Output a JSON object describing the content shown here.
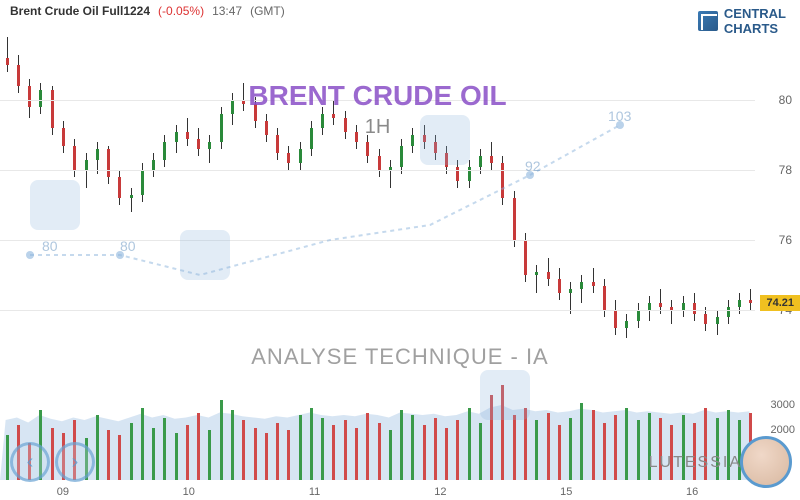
{
  "header": {
    "symbol": "Brent Crude Oil Full1224",
    "change": "(-0.05%)",
    "time": "13:47",
    "tz": "(GMT)"
  },
  "logo": {
    "text1": "CENTRAL",
    "text2": "CHARTS"
  },
  "title": {
    "main": "BRENT CRUDE OIL",
    "sub": "1H"
  },
  "subtitle": "ANALYSE TECHNIQUE - IA",
  "brand": "LUTESSIA",
  "chart": {
    "type": "candlestick",
    "ylim": [
      72,
      82
    ],
    "yticks": [
      74,
      76,
      78,
      80
    ],
    "current_price": 74.21,
    "xlabels": [
      "09",
      "10",
      "11",
      "12",
      "15",
      "16"
    ],
    "grid_color": "#e8e8e8",
    "up_color": "#2a8a3a",
    "down_color": "#c83a3a",
    "candles": [
      {
        "o": 81.2,
        "h": 81.8,
        "l": 80.8,
        "c": 81.0
      },
      {
        "o": 81.0,
        "h": 81.3,
        "l": 80.2,
        "c": 80.4
      },
      {
        "o": 80.4,
        "h": 80.6,
        "l": 79.5,
        "c": 79.8
      },
      {
        "o": 79.8,
        "h": 80.5,
        "l": 79.6,
        "c": 80.3
      },
      {
        "o": 80.3,
        "h": 80.4,
        "l": 79.0,
        "c": 79.2
      },
      {
        "o": 79.2,
        "h": 79.4,
        "l": 78.5,
        "c": 78.7
      },
      {
        "o": 78.7,
        "h": 78.9,
        "l": 77.8,
        "c": 78.0
      },
      {
        "o": 78.0,
        "h": 78.5,
        "l": 77.5,
        "c": 78.3
      },
      {
        "o": 78.3,
        "h": 78.8,
        "l": 77.9,
        "c": 78.6
      },
      {
        "o": 78.6,
        "h": 78.7,
        "l": 77.6,
        "c": 77.8
      },
      {
        "o": 77.8,
        "h": 78.0,
        "l": 77.0,
        "c": 77.2
      },
      {
        "o": 77.2,
        "h": 77.5,
        "l": 76.8,
        "c": 77.3
      },
      {
        "o": 77.3,
        "h": 78.2,
        "l": 77.1,
        "c": 78.0
      },
      {
        "o": 78.0,
        "h": 78.5,
        "l": 77.8,
        "c": 78.3
      },
      {
        "o": 78.3,
        "h": 79.0,
        "l": 78.1,
        "c": 78.8
      },
      {
        "o": 78.8,
        "h": 79.3,
        "l": 78.5,
        "c": 79.1
      },
      {
        "o": 79.1,
        "h": 79.5,
        "l": 78.7,
        "c": 78.9
      },
      {
        "o": 78.9,
        "h": 79.2,
        "l": 78.4,
        "c": 78.6
      },
      {
        "o": 78.6,
        "h": 79.0,
        "l": 78.2,
        "c": 78.8
      },
      {
        "o": 78.8,
        "h": 79.8,
        "l": 78.6,
        "c": 79.6
      },
      {
        "o": 79.6,
        "h": 80.2,
        "l": 79.3,
        "c": 80.0
      },
      {
        "o": 80.0,
        "h": 80.5,
        "l": 79.7,
        "c": 79.9
      },
      {
        "o": 79.9,
        "h": 80.1,
        "l": 79.2,
        "c": 79.4
      },
      {
        "o": 79.4,
        "h": 79.6,
        "l": 78.8,
        "c": 79.0
      },
      {
        "o": 79.0,
        "h": 79.2,
        "l": 78.3,
        "c": 78.5
      },
      {
        "o": 78.5,
        "h": 78.7,
        "l": 78.0,
        "c": 78.2
      },
      {
        "o": 78.2,
        "h": 78.8,
        "l": 78.0,
        "c": 78.6
      },
      {
        "o": 78.6,
        "h": 79.4,
        "l": 78.4,
        "c": 79.2
      },
      {
        "o": 79.2,
        "h": 79.8,
        "l": 79.0,
        "c": 79.6
      },
      {
        "o": 79.6,
        "h": 80.0,
        "l": 79.3,
        "c": 79.5
      },
      {
        "o": 79.5,
        "h": 79.7,
        "l": 78.9,
        "c": 79.1
      },
      {
        "o": 79.1,
        "h": 79.3,
        "l": 78.6,
        "c": 78.8
      },
      {
        "o": 78.8,
        "h": 79.0,
        "l": 78.2,
        "c": 78.4
      },
      {
        "o": 78.4,
        "h": 78.6,
        "l": 77.8,
        "c": 78.0
      },
      {
        "o": 78.0,
        "h": 78.3,
        "l": 77.5,
        "c": 78.1
      },
      {
        "o": 78.1,
        "h": 78.9,
        "l": 77.9,
        "c": 78.7
      },
      {
        "o": 78.7,
        "h": 79.2,
        "l": 78.5,
        "c": 79.0
      },
      {
        "o": 79.0,
        "h": 79.3,
        "l": 78.6,
        "c": 78.8
      },
      {
        "o": 78.8,
        "h": 79.0,
        "l": 78.3,
        "c": 78.5
      },
      {
        "o": 78.5,
        "h": 78.7,
        "l": 77.9,
        "c": 78.1
      },
      {
        "o": 78.1,
        "h": 78.3,
        "l": 77.5,
        "c": 77.7
      },
      {
        "o": 77.7,
        "h": 78.3,
        "l": 77.5,
        "c": 78.1
      },
      {
        "o": 78.1,
        "h": 78.6,
        "l": 77.9,
        "c": 78.4
      },
      {
        "o": 78.4,
        "h": 78.8,
        "l": 78.0,
        "c": 78.2
      },
      {
        "o": 78.2,
        "h": 78.4,
        "l": 77.0,
        "c": 77.2
      },
      {
        "o": 77.2,
        "h": 77.4,
        "l": 75.8,
        "c": 76.0
      },
      {
        "o": 76.0,
        "h": 76.2,
        "l": 74.8,
        "c": 75.0
      },
      {
        "o": 75.0,
        "h": 75.3,
        "l": 74.5,
        "c": 75.1
      },
      {
        "o": 75.1,
        "h": 75.5,
        "l": 74.7,
        "c": 74.9
      },
      {
        "o": 74.9,
        "h": 75.2,
        "l": 74.3,
        "c": 74.5
      },
      {
        "o": 74.5,
        "h": 74.8,
        "l": 73.9,
        "c": 74.6
      },
      {
        "o": 74.6,
        "h": 75.0,
        "l": 74.2,
        "c": 74.8
      },
      {
        "o": 74.8,
        "h": 75.2,
        "l": 74.5,
        "c": 74.7
      },
      {
        "o": 74.7,
        "h": 74.9,
        "l": 73.8,
        "c": 74.0
      },
      {
        "o": 74.0,
        "h": 74.3,
        "l": 73.3,
        "c": 73.5
      },
      {
        "o": 73.5,
        "h": 73.9,
        "l": 73.2,
        "c": 73.7
      },
      {
        "o": 73.7,
        "h": 74.2,
        "l": 73.5,
        "c": 74.0
      },
      {
        "o": 74.0,
        "h": 74.4,
        "l": 73.7,
        "c": 74.2
      },
      {
        "o": 74.2,
        "h": 74.6,
        "l": 73.9,
        "c": 74.1
      },
      {
        "o": 74.1,
        "h": 74.3,
        "l": 73.6,
        "c": 74.0
      },
      {
        "o": 74.0,
        "h": 74.4,
        "l": 73.8,
        "c": 74.2
      },
      {
        "o": 74.2,
        "h": 74.5,
        "l": 73.7,
        "c": 73.9
      },
      {
        "o": 73.9,
        "h": 74.1,
        "l": 73.4,
        "c": 73.6
      },
      {
        "o": 73.6,
        "h": 74.0,
        "l": 73.3,
        "c": 73.8
      },
      {
        "o": 73.8,
        "h": 74.3,
        "l": 73.6,
        "c": 74.1
      },
      {
        "o": 74.1,
        "h": 74.5,
        "l": 73.9,
        "c": 74.3
      },
      {
        "o": 74.3,
        "h": 74.6,
        "l": 74.0,
        "c": 74.21
      }
    ]
  },
  "volume": {
    "ylim": [
      0,
      4000
    ],
    "yticks": [
      2000,
      3000
    ],
    "line_color": "#5a9acf",
    "area_color": "rgba(140,180,220,0.35)",
    "bars": [
      1800,
      2200,
      1500,
      2800,
      2100,
      1900,
      2400,
      1700,
      2600,
      2000,
      1800,
      2300,
      2900,
      2100,
      2500,
      1900,
      2200,
      2700,
      2000,
      3200,
      2800,
      2400,
      2100,
      1900,
      2300,
      2000,
      2600,
      2900,
      2500,
      2200,
      2400,
      2100,
      2700,
      2300,
      2000,
      2800,
      2600,
      2200,
      2500,
      2100,
      2400,
      2900,
      2300,
      3400,
      3800,
      2600,
      2900,
      2400,
      2700,
      2200,
      2500,
      3100,
      2800,
      2300,
      2600,
      2900,
      2400,
      2700,
      2500,
      2200,
      2600,
      2300,
      2900,
      2500,
      2800,
      2400,
      2700
    ],
    "line": [
      2400,
      2500,
      2300,
      2600,
      2450,
      2350,
      2500,
      2400,
      2550,
      2450,
      2350,
      2500,
      2650,
      2500,
      2600,
      2450,
      2500,
      2600,
      2500,
      2700,
      2650,
      2550,
      2500,
      2450,
      2550,
      2500,
      2600,
      2700,
      2600,
      2550,
      2600,
      2550,
      2650,
      2600,
      2500,
      2700,
      2650,
      2600,
      2650,
      2550,
      2600,
      2750,
      2650,
      2900,
      3000,
      2800,
      2850,
      2750,
      2800,
      2700,
      2750,
      2850,
      2800,
      2700,
      2750,
      2800,
      2700,
      2750,
      2700,
      2650,
      2700,
      2650,
      2800,
      2700,
      2750,
      2700,
      2750
    ]
  },
  "watermark_labels": [
    "80",
    "80",
    "92",
    "103"
  ],
  "colors": {
    "title": "#8a4fc7",
    "subtitle_gray": "#a0a0a0",
    "price_tag_bg": "#f0c020",
    "accent_blue": "#5a9acf"
  }
}
